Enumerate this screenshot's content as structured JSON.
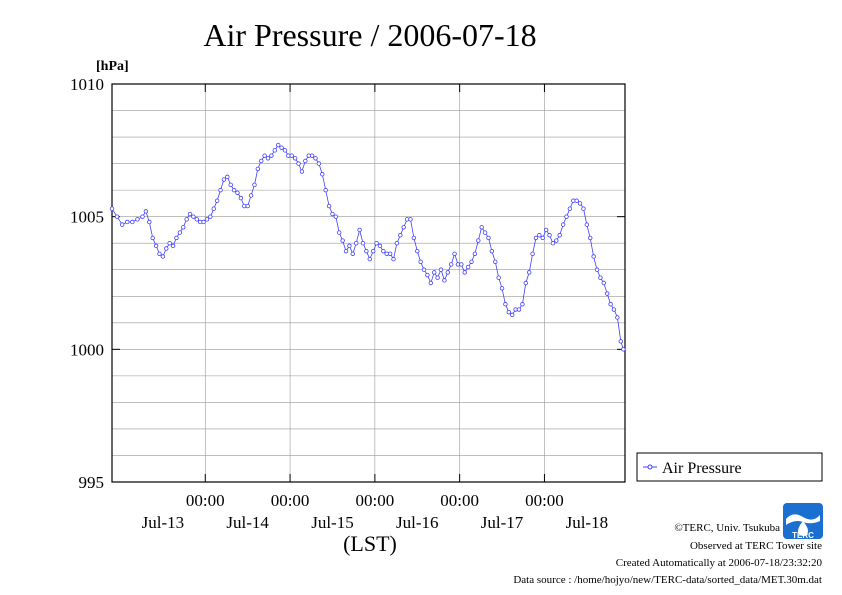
{
  "chart_data": {
    "type": "line",
    "title": "Air Pressure / 2006-07-18",
    "ylabel": "[hPa]",
    "xlabel": "(LST)",
    "ylim": [
      995,
      1010
    ],
    "y_ticks": [
      "995",
      "1000",
      "1005",
      "1010"
    ],
    "xlim": [
      0.9,
      6.95
    ],
    "x_ticks": [
      {
        "x": 2,
        "time": "00:00",
        "day": "Jul-13"
      },
      {
        "x": 3,
        "time": "00:00",
        "day": "Jul-14"
      },
      {
        "x": 4,
        "time": "00:00",
        "day": "Jul-15"
      },
      {
        "x": 5,
        "time": "00:00",
        "day": "Jul-16"
      },
      {
        "x": 6,
        "time": "00:00",
        "day": "Jul-17"
      }
    ],
    "x_day_labels": [
      {
        "x": 1.5,
        "label": "Jul-13"
      },
      {
        "x": 2.5,
        "label": "Jul-14"
      },
      {
        "x": 3.5,
        "label": "Jul-15"
      },
      {
        "x": 4.5,
        "label": "Jul-16"
      },
      {
        "x": 5.5,
        "label": "Jul-17"
      },
      {
        "x": 6.5,
        "label": "Jul-18"
      }
    ],
    "grid": true,
    "legend_position": "right",
    "series": [
      {
        "name": "Air Pressure",
        "color": "#4040ff",
        "points": [
          [
            0.9,
            1005.3
          ],
          [
            0.96,
            1005.0
          ],
          [
            1.02,
            1004.7
          ],
          [
            1.08,
            1004.8
          ],
          [
            1.14,
            1004.8
          ],
          [
            1.2,
            1004.9
          ],
          [
            1.26,
            1005.0
          ],
          [
            1.3,
            1005.2
          ],
          [
            1.34,
            1004.8
          ],
          [
            1.38,
            1004.2
          ],
          [
            1.42,
            1003.9
          ],
          [
            1.46,
            1003.6
          ],
          [
            1.5,
            1003.5
          ],
          [
            1.54,
            1003.8
          ],
          [
            1.58,
            1004.0
          ],
          [
            1.62,
            1003.9
          ],
          [
            1.66,
            1004.2
          ],
          [
            1.7,
            1004.4
          ],
          [
            1.74,
            1004.6
          ],
          [
            1.78,
            1004.9
          ],
          [
            1.82,
            1005.1
          ],
          [
            1.86,
            1005.0
          ],
          [
            1.9,
            1004.9
          ],
          [
            1.94,
            1004.8
          ],
          [
            1.98,
            1004.8
          ],
          [
            2.02,
            1004.9
          ],
          [
            2.06,
            1005.0
          ],
          [
            2.1,
            1005.3
          ],
          [
            2.14,
            1005.6
          ],
          [
            2.18,
            1006.0
          ],
          [
            2.22,
            1006.4
          ],
          [
            2.26,
            1006.5
          ],
          [
            2.3,
            1006.2
          ],
          [
            2.34,
            1006.0
          ],
          [
            2.38,
            1005.9
          ],
          [
            2.42,
            1005.7
          ],
          [
            2.46,
            1005.4
          ],
          [
            2.5,
            1005.4
          ],
          [
            2.54,
            1005.8
          ],
          [
            2.58,
            1006.2
          ],
          [
            2.62,
            1006.8
          ],
          [
            2.66,
            1007.1
          ],
          [
            2.7,
            1007.3
          ],
          [
            2.74,
            1007.2
          ],
          [
            2.78,
            1007.3
          ],
          [
            2.82,
            1007.5
          ],
          [
            2.86,
            1007.7
          ],
          [
            2.9,
            1007.6
          ],
          [
            2.94,
            1007.5
          ],
          [
            2.98,
            1007.3
          ],
          [
            3.02,
            1007.3
          ],
          [
            3.06,
            1007.2
          ],
          [
            3.1,
            1007.0
          ],
          [
            3.14,
            1006.7
          ],
          [
            3.18,
            1007.1
          ],
          [
            3.22,
            1007.3
          ],
          [
            3.26,
            1007.3
          ],
          [
            3.3,
            1007.2
          ],
          [
            3.34,
            1007.0
          ],
          [
            3.38,
            1006.6
          ],
          [
            3.42,
            1006.0
          ],
          [
            3.46,
            1005.4
          ],
          [
            3.5,
            1005.1
          ],
          [
            3.54,
            1005.0
          ],
          [
            3.58,
            1004.4
          ],
          [
            3.62,
            1004.1
          ],
          [
            3.66,
            1003.7
          ],
          [
            3.7,
            1003.9
          ],
          [
            3.74,
            1003.6
          ],
          [
            3.78,
            1004.0
          ],
          [
            3.82,
            1004.5
          ],
          [
            3.86,
            1004.0
          ],
          [
            3.9,
            1003.7
          ],
          [
            3.94,
            1003.4
          ],
          [
            3.98,
            1003.7
          ],
          [
            4.02,
            1004.0
          ],
          [
            4.06,
            1003.9
          ],
          [
            4.1,
            1003.7
          ],
          [
            4.14,
            1003.6
          ],
          [
            4.18,
            1003.6
          ],
          [
            4.22,
            1003.4
          ],
          [
            4.26,
            1004.0
          ],
          [
            4.3,
            1004.3
          ],
          [
            4.34,
            1004.6
          ],
          [
            4.38,
            1004.9
          ],
          [
            4.42,
            1004.9
          ],
          [
            4.46,
            1004.2
          ],
          [
            4.5,
            1003.7
          ],
          [
            4.54,
            1003.3
          ],
          [
            4.58,
            1003.0
          ],
          [
            4.62,
            1002.8
          ],
          [
            4.66,
            1002.5
          ],
          [
            4.7,
            1002.9
          ],
          [
            4.74,
            1002.7
          ],
          [
            4.78,
            1003.0
          ],
          [
            4.82,
            1002.6
          ],
          [
            4.86,
            1002.9
          ],
          [
            4.9,
            1003.2
          ],
          [
            4.94,
            1003.6
          ],
          [
            4.98,
            1003.2
          ],
          [
            5.02,
            1003.2
          ],
          [
            5.06,
            1002.9
          ],
          [
            5.1,
            1003.1
          ],
          [
            5.14,
            1003.3
          ],
          [
            5.18,
            1003.6
          ],
          [
            5.22,
            1004.1
          ],
          [
            5.26,
            1004.6
          ],
          [
            5.3,
            1004.4
          ],
          [
            5.34,
            1004.2
          ],
          [
            5.38,
            1003.7
          ],
          [
            5.42,
            1003.3
          ],
          [
            5.46,
            1002.7
          ],
          [
            5.5,
            1002.3
          ],
          [
            5.54,
            1001.7
          ],
          [
            5.58,
            1001.4
          ],
          [
            5.62,
            1001.3
          ],
          [
            5.66,
            1001.5
          ],
          [
            5.7,
            1001.5
          ],
          [
            5.74,
            1001.7
          ],
          [
            5.78,
            1002.5
          ],
          [
            5.82,
            1002.9
          ],
          [
            5.86,
            1003.6
          ],
          [
            5.9,
            1004.2
          ],
          [
            5.94,
            1004.3
          ],
          [
            5.98,
            1004.2
          ],
          [
            6.02,
            1004.5
          ],
          [
            6.06,
            1004.3
          ],
          [
            6.1,
            1004.0
          ],
          [
            6.14,
            1004.1
          ],
          [
            6.18,
            1004.3
          ],
          [
            6.22,
            1004.7
          ],
          [
            6.26,
            1005.0
          ],
          [
            6.3,
            1005.3
          ],
          [
            6.34,
            1005.6
          ],
          [
            6.38,
            1005.6
          ],
          [
            6.42,
            1005.5
          ],
          [
            6.46,
            1005.3
          ],
          [
            6.5,
            1004.7
          ],
          [
            6.54,
            1004.2
          ],
          [
            6.58,
            1003.5
          ],
          [
            6.62,
            1003.0
          ],
          [
            6.66,
            1002.7
          ],
          [
            6.7,
            1002.5
          ],
          [
            6.74,
            1002.1
          ],
          [
            6.78,
            1001.7
          ],
          [
            6.82,
            1001.5
          ],
          [
            6.86,
            1001.2
          ],
          [
            6.9,
            1000.3
          ],
          [
            6.93,
            1000.0
          ]
        ]
      }
    ]
  },
  "credits": {
    "copyright": "©TERC, Univ. Tsukuba",
    "observed": "Observed at TERC Tower site",
    "created": "Created Automatically at 2006-07-18/23:32:20",
    "source": "Data source : /home/hojyo/new/TERC-data/sorted_data/MET.30m.dat"
  },
  "logo": {
    "text": "TERC",
    "color": "#1a6fd0"
  }
}
